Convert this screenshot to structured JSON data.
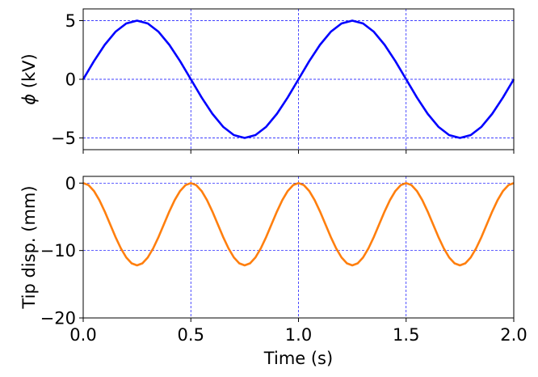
{
  "chart_data": [
    {
      "type": "line",
      "xlabel": "",
      "ylabel": "ϕ (kV)",
      "ylabel_symbol": "ϕ",
      "ylabel_unit": " (kV)",
      "xlim": [
        0,
        2
      ],
      "ylim": [
        -6,
        6
      ],
      "xticks": [
        0,
        0.5,
        1,
        1.5,
        2
      ],
      "yticks": [
        -5,
        0,
        5
      ],
      "ytick_labels": [
        "−5",
        "0",
        "5"
      ],
      "grid": "dashed",
      "grid_color": "#0000ff",
      "series": [
        {
          "color": "#0000ff",
          "x": [
            0,
            0.05,
            0.1,
            0.15,
            0.2,
            0.25,
            0.3,
            0.35,
            0.4,
            0.45,
            0.5,
            0.55,
            0.6,
            0.65,
            0.7,
            0.75,
            0.8,
            0.85,
            0.9,
            0.95,
            1.0,
            1.05,
            1.1,
            1.15,
            1.2,
            1.25,
            1.3,
            1.35,
            1.4,
            1.45,
            1.5,
            1.55,
            1.6,
            1.65,
            1.7,
            1.75,
            1.8,
            1.85,
            1.9,
            1.95,
            2.0
          ],
          "values": [
            0,
            1.55,
            2.94,
            4.05,
            4.76,
            5.0,
            4.76,
            4.05,
            2.94,
            1.55,
            0,
            -1.55,
            -2.94,
            -4.05,
            -4.76,
            -5.0,
            -4.76,
            -4.05,
            -2.94,
            -1.55,
            0,
            1.55,
            2.94,
            4.05,
            4.76,
            5.0,
            4.76,
            4.05,
            2.94,
            1.55,
            0,
            -1.55,
            -2.94,
            -4.05,
            -4.76,
            -5.0,
            -4.76,
            -4.05,
            -2.94,
            -1.55,
            0
          ]
        }
      ]
    },
    {
      "type": "line",
      "xlabel": "Time (s)",
      "ylabel": "Tip disp. (mm)",
      "xlim": [
        0,
        2
      ],
      "ylim": [
        -20,
        1
      ],
      "xticks": [
        0,
        0.5,
        1,
        1.5,
        2
      ],
      "xtick_labels": [
        "0.0",
        "0.5",
        "1.0",
        "1.5",
        "2.0"
      ],
      "yticks": [
        -20,
        -10,
        0
      ],
      "ytick_labels": [
        "−20",
        "−10",
        "0"
      ],
      "grid": "dashed",
      "grid_color": "#0000ff",
      "series": [
        {
          "color": "#ff7f0e",
          "x": [
            0,
            0.025,
            0.05,
            0.075,
            0.1,
            0.125,
            0.15,
            0.175,
            0.2,
            0.225,
            0.25,
            0.275,
            0.3,
            0.325,
            0.35,
            0.375,
            0.4,
            0.425,
            0.45,
            0.475,
            0.5,
            0.525,
            0.55,
            0.575,
            0.6,
            0.625,
            0.65,
            0.675,
            0.7,
            0.725,
            0.75,
            0.775,
            0.8,
            0.825,
            0.85,
            0.875,
            0.9,
            0.925,
            0.95,
            0.975,
            1.0,
            1.025,
            1.05,
            1.075,
            1.1,
            1.125,
            1.15,
            1.175,
            1.2,
            1.225,
            1.25,
            1.275,
            1.3,
            1.325,
            1.35,
            1.375,
            1.4,
            1.425,
            1.45,
            1.475,
            1.5,
            1.525,
            1.55,
            1.575,
            1.6,
            1.625,
            1.65,
            1.675,
            1.7,
            1.725,
            1.75,
            1.775,
            1.8,
            1.825,
            1.85,
            1.875,
            1.9,
            1.925,
            1.95,
            1.975,
            2.0
          ],
          "values": [
            0,
            -0.3,
            -1.17,
            -2.52,
            -4.21,
            -6.1,
            -7.99,
            -9.68,
            -11.03,
            -11.9,
            -12.2,
            -11.9,
            -11.03,
            -9.68,
            -7.99,
            -6.1,
            -4.21,
            -2.52,
            -1.17,
            -0.3,
            0,
            -0.3,
            -1.17,
            -2.52,
            -4.21,
            -6.1,
            -7.99,
            -9.68,
            -11.03,
            -11.9,
            -12.2,
            -11.9,
            -11.03,
            -9.68,
            -7.99,
            -6.1,
            -4.21,
            -2.52,
            -1.17,
            -0.3,
            0,
            -0.3,
            -1.17,
            -2.52,
            -4.21,
            -6.1,
            -7.99,
            -9.68,
            -11.03,
            -11.9,
            -12.2,
            -11.9,
            -11.03,
            -9.68,
            -7.99,
            -6.1,
            -4.21,
            -2.52,
            -1.17,
            -0.3,
            0,
            -0.3,
            -1.17,
            -2.52,
            -4.21,
            -6.1,
            -7.99,
            -9.68,
            -11.03,
            -11.9,
            -12.2,
            -11.9,
            -11.03,
            -9.68,
            -7.99,
            -6.1,
            -4.21,
            -2.52,
            -1.17,
            -0.3,
            0
          ]
        }
      ]
    }
  ]
}
